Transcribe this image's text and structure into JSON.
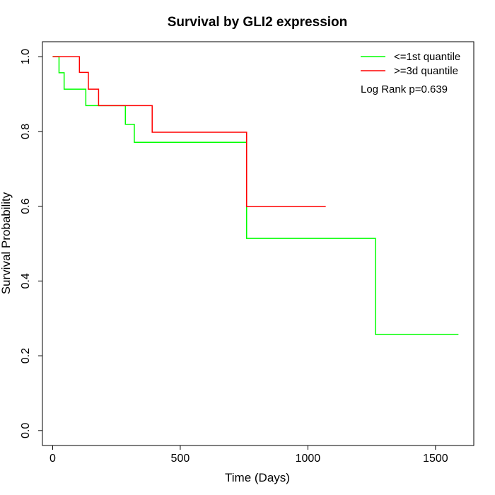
{
  "chart_data": {
    "type": "line",
    "title": "Survival by GLI2 expression",
    "xlabel": "Time (Days)",
    "ylabel": "Survival Probability",
    "xlim": [
      -40,
      1650
    ],
    "ylim": [
      -0.04,
      1.04
    ],
    "xticks": [
      0,
      500,
      1000,
      1500
    ],
    "yticks": [
      0.0,
      0.2,
      0.4,
      0.6,
      0.8,
      1.0
    ],
    "xtick_labels": [
      "0",
      "500",
      "1000",
      "1500"
    ],
    "ytick_labels": [
      "0.0",
      "0.2",
      "0.4",
      "0.6",
      "0.8",
      "1.0"
    ],
    "legend_position": "top-right",
    "grid": false,
    "annotation": "Log Rank p=0.639",
    "series": [
      {
        "name": "<=1st quantile",
        "color": "#00ff00",
        "step": true,
        "x": [
          0,
          25,
          45,
          130,
          285,
          320,
          760,
          1265,
          1590
        ],
        "y": [
          1.0,
          0.957,
          0.913,
          0.869,
          0.819,
          0.771,
          0.514,
          0.257,
          0.257
        ]
      },
      {
        "name": ">=3d quantile",
        "color": "#ff0000",
        "step": true,
        "x": [
          0,
          105,
          140,
          180,
          390,
          760,
          1070
        ],
        "y": [
          1.0,
          0.958,
          0.913,
          0.869,
          0.798,
          0.599,
          0.599
        ]
      }
    ]
  }
}
